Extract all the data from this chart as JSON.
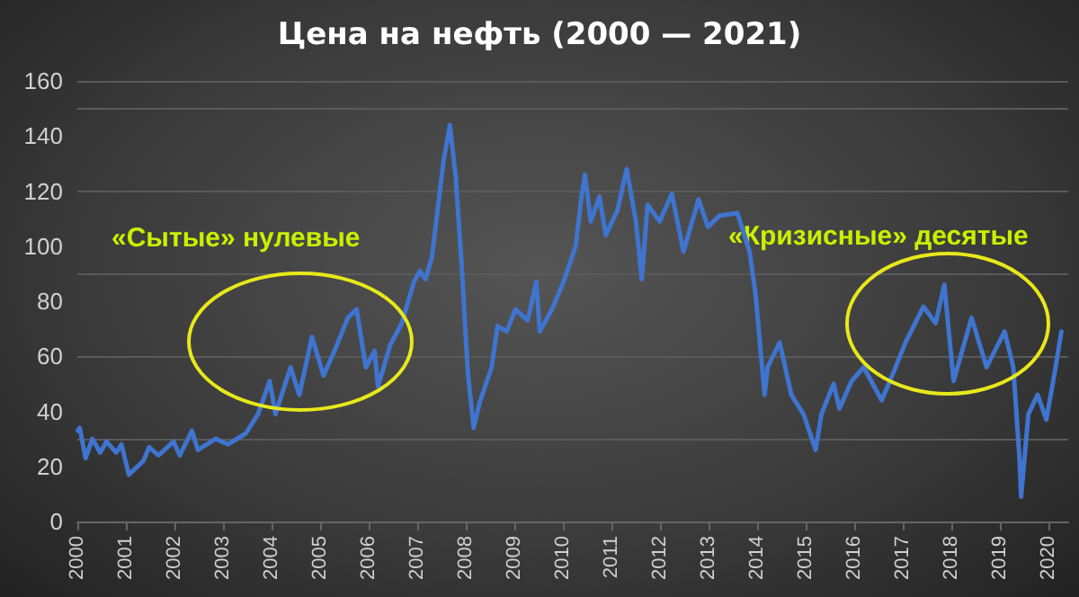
{
  "chart_data": {
    "type": "line",
    "title": "Цена на нефть (2000 — 2021)",
    "x": [
      2000.01,
      2000.05,
      2000.17,
      2000.31,
      2000.47,
      2000.6,
      2000.8,
      2000.91,
      2001.06,
      2001.36,
      2001.48,
      2001.67,
      2001.98,
      2002.11,
      2002.36,
      2002.48,
      2002.85,
      2003.1,
      2003.47,
      2003.72,
      2003.96,
      2004.08,
      2004.39,
      2004.57,
      2004.83,
      2005.07,
      2005.32,
      2005.57,
      2005.75,
      2005.94,
      2006.12,
      2006.19,
      2006.44,
      2006.68,
      2006.93,
      2007.05,
      2007.17,
      2007.3,
      2007.54,
      2007.67,
      2007.79,
      2007.91,
      2008.04,
      2008.16,
      2008.28,
      2008.53,
      2008.65,
      2008.84,
      2009.02,
      2009.27,
      2009.45,
      2009.52,
      2009.77,
      2010.01,
      2010.26,
      2010.38,
      2010.45,
      2010.57,
      2010.75,
      2010.88,
      2011.12,
      2011.31,
      2011.5,
      2011.62,
      2011.74,
      2011.99,
      2012.24,
      2012.48,
      2012.79,
      2012.98,
      2013.22,
      2013.59,
      2013.84,
      2013.96,
      2014.15,
      2014.21,
      2014.46,
      2014.7,
      2014.95,
      2015.2,
      2015.32,
      2015.57,
      2015.69,
      2015.94,
      2016.19,
      2016.56,
      2016.8,
      2017.05,
      2017.42,
      2017.67,
      2017.85,
      2018.04,
      2018.41,
      2018.72,
      2019.09,
      2019.27,
      2019.4,
      2019.43,
      2019.58,
      2019.77,
      2019.95,
      2020.14,
      2020.26
    ],
    "series": [
      {
        "color": "#3f74cf",
        "values": [
          33,
          34,
          23,
          30,
          25,
          29,
          25,
          28,
          17,
          22,
          27,
          24,
          29,
          24,
          33,
          26,
          30,
          28,
          32,
          39,
          51,
          39,
          56,
          46,
          67,
          53,
          63,
          74,
          77,
          56,
          62,
          49,
          64,
          72,
          87,
          91,
          88,
          96,
          131,
          144,
          125,
          94,
          54,
          34,
          43,
          56,
          71,
          69,
          77,
          73,
          87,
          69,
          77,
          87,
          100,
          118,
          126,
          109,
          118,
          104,
          113,
          128,
          109,
          88,
          115,
          109,
          119,
          98,
          117,
          107,
          111,
          112,
          98,
          83,
          46,
          56,
          65,
          46,
          39,
          26,
          39,
          50,
          41,
          51,
          56,
          44,
          54,
          65,
          78,
          72,
          86,
          51,
          74,
          56,
          69,
          56,
          22,
          9,
          39,
          46,
          37,
          56,
          69
        ]
      }
    ],
    "xlim": [
      2000,
      2020.4
    ],
    "xticks": [
      2000,
      2001,
      2002,
      2003,
      2004,
      2005,
      2006,
      2007,
      2008,
      2009,
      2010,
      2011,
      2012,
      2013,
      2014,
      2015,
      2016,
      2017,
      2018,
      2019,
      2020
    ],
    "ylim": [
      0,
      160
    ],
    "yticks": [
      0,
      20,
      40,
      60,
      80,
      100,
      120,
      140,
      160
    ],
    "grid": "y",
    "marker": "none",
    "line_style": "solid",
    "annotations": [
      "«Сытые» нулевые",
      "«Кризисные» десятые"
    ]
  }
}
